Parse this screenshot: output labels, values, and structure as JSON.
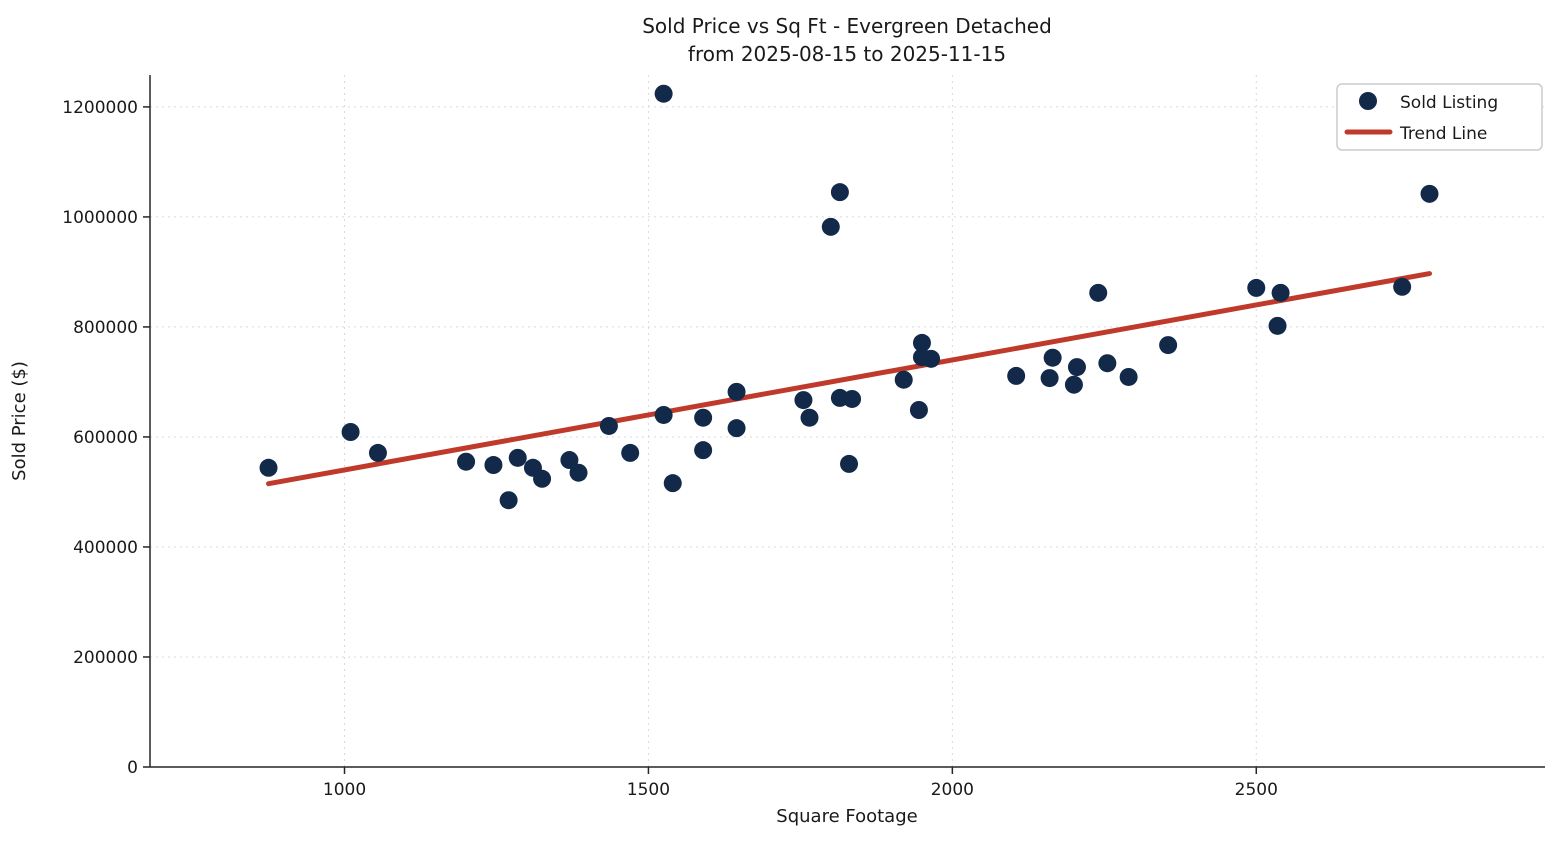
{
  "chart_data": {
    "type": "scatter",
    "title": "Sold Price vs Sq Ft - Evergreen Detached",
    "subtitle": "from 2025-08-15 to 2025-11-15",
    "xlabel": "Square Footage",
    "ylabel": "Sold Price ($)",
    "xlim": [
      680,
      2975
    ],
    "ylim": [
      0,
      1258000
    ],
    "x_ticks": [
      1000,
      1500,
      2000,
      2500
    ],
    "y_ticks": [
      0,
      200000,
      400000,
      600000,
      800000,
      1000000,
      1200000
    ],
    "grid": true,
    "grid_style": "dashed",
    "legend_position": "upper right",
    "series": [
      {
        "name": "Sold Listing",
        "type": "scatter",
        "marker": "circle",
        "color": "#12294a",
        "points": [
          [
            875,
            544000
          ],
          [
            1010,
            609000
          ],
          [
            1055,
            571000
          ],
          [
            1200,
            555000
          ],
          [
            1245,
            549000
          ],
          [
            1270,
            485000
          ],
          [
            1285,
            562000
          ],
          [
            1310,
            544000
          ],
          [
            1325,
            524000
          ],
          [
            1370,
            558000
          ],
          [
            1385,
            535000
          ],
          [
            1435,
            620000
          ],
          [
            1470,
            571000
          ],
          [
            1525,
            640000
          ],
          [
            1525,
            1224000
          ],
          [
            1540,
            516000
          ],
          [
            1590,
            635000
          ],
          [
            1590,
            576000
          ],
          [
            1645,
            682000
          ],
          [
            1645,
            616000
          ],
          [
            1755,
            667000
          ],
          [
            1765,
            635000
          ],
          [
            1800,
            982000
          ],
          [
            1815,
            1045000
          ],
          [
            1815,
            671000
          ],
          [
            1835,
            669000
          ],
          [
            1830,
            551000
          ],
          [
            1920,
            704000
          ],
          [
            1945,
            649000
          ],
          [
            1950,
            771000
          ],
          [
            1950,
            745000
          ],
          [
            1965,
            742000
          ],
          [
            2105,
            711000
          ],
          [
            2160,
            707000
          ],
          [
            2165,
            744000
          ],
          [
            2200,
            695000
          ],
          [
            2205,
            727000
          ],
          [
            2240,
            862000
          ],
          [
            2255,
            734000
          ],
          [
            2290,
            709000
          ],
          [
            2355,
            767000
          ],
          [
            2500,
            871000
          ],
          [
            2535,
            802000
          ],
          [
            2540,
            862000
          ],
          [
            2740,
            873000
          ],
          [
            2785,
            1042000
          ]
        ]
      },
      {
        "name": "Trend Line",
        "type": "line",
        "color": "#c03a2b",
        "points": [
          [
            875,
            515000
          ],
          [
            2785,
            897000
          ]
        ]
      }
    ]
  },
  "legend": {
    "items": [
      {
        "label": "Sold Listing",
        "marker": "dot"
      },
      {
        "label": "Trend Line",
        "marker": "line"
      }
    ]
  },
  "colors": {
    "point": "#12294a",
    "trend": "#c03a2b",
    "grid": "#d9d9d9",
    "spine": "#262626",
    "text": "#1a1a1a",
    "legend_border": "#cccccc",
    "background": "#ffffff"
  }
}
